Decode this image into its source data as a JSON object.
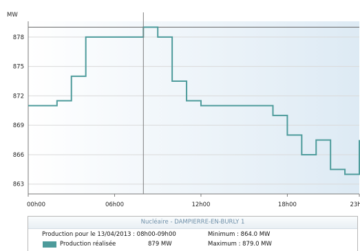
{
  "chart_data": {
    "type": "line",
    "step": true,
    "ylabel": "MW",
    "ylim": [
      862,
      879.6
    ],
    "yticks": [
      863,
      866,
      869,
      872,
      875,
      878
    ],
    "xlim": [
      0,
      23
    ],
    "xticks": [
      {
        "value": 0,
        "label": "00h00"
      },
      {
        "value": 6,
        "label": "06h00"
      },
      {
        "value": 12,
        "label": "12h00"
      },
      {
        "value": 18,
        "label": "18h00"
      },
      {
        "value": 23,
        "label": "23h00"
      }
    ],
    "series": [
      {
        "name": "Production réalisée",
        "color": "#4d9b9b",
        "x": [
          0,
          2,
          3,
          4,
          7,
          8,
          9,
          10,
          11,
          12,
          16,
          17,
          18,
          19,
          20,
          21,
          22,
          23
        ],
        "values": [
          871,
          871.5,
          874,
          878,
          878,
          879,
          878,
          873.5,
          871.5,
          871,
          871,
          870,
          868,
          866,
          867.5,
          864.5,
          864,
          867.5
        ]
      }
    ],
    "reference_line": 879,
    "crosshair_x": 8,
    "grid": "horizontal",
    "colors": {
      "series": "#4d9b9b",
      "background_left": "#ffffff",
      "background_right": "#ddeaf4",
      "grid": "#d9d9d9",
      "axis": "#7a7a7a"
    }
  },
  "info": {
    "title": "Nucléaire - DAMPIERRE-EN-BURLY 1",
    "date_text": "Production pour le 13/04/2013 : 08h00-09h00",
    "min_text": "Minimum : 864.0 MW",
    "legend_label": "Production réalisée",
    "value_text": "879  MW",
    "max_text": "Maximum : 879.0 MW",
    "legend_color": "#4d9b9b"
  }
}
